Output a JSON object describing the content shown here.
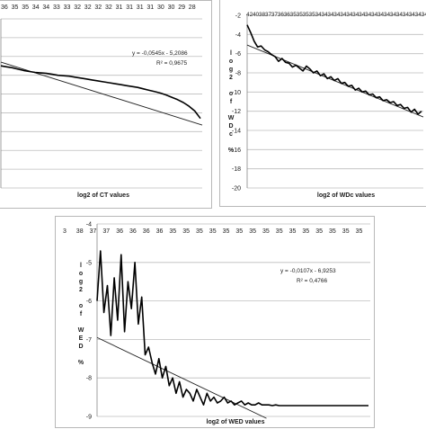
{
  "chart_data": [
    {
      "type": "line",
      "xlabel": "log2 of CT values",
      "ylabel": "",
      "x_tick_labels": [
        "36",
        "35",
        "35",
        "34",
        "34",
        "33",
        "33",
        "32",
        "32",
        "32",
        "32",
        "31",
        "31",
        "31",
        "31",
        "30",
        "30",
        "29",
        "28"
      ],
      "ylim": [
        -18,
        0
      ],
      "grid": true,
      "legend": "none",
      "trendline": {
        "equation": "y = -0,0545x - 5,2086",
        "r2": "R² = 0,9675"
      },
      "series": [
        {
          "values": [
            -5.0,
            -5.1,
            -5.2,
            -5.35,
            -5.5,
            -5.6,
            -5.7,
            -5.75,
            -5.8,
            -5.9,
            -6.0,
            -6.05,
            -6.1,
            -6.2,
            -6.3,
            -6.4,
            -6.5,
            -6.6,
            -6.7,
            -6.8,
            -6.9,
            -7.0,
            -7.1,
            -7.2,
            -7.3,
            -7.45,
            -7.6,
            -7.75,
            -7.9,
            -8.1,
            -8.35,
            -8.6,
            -8.9,
            -9.3,
            -9.8,
            -10.6
          ]
        }
      ],
      "colors": {
        "line": "#000000",
        "trend": "#222222",
        "grid": "#bdbdbd"
      }
    },
    {
      "type": "line",
      "xlabel": "log2 of WDc values",
      "ylabel": "log2 of WDc %",
      "x_tick_labels": [
        "42",
        "40",
        "38",
        "37",
        "37",
        "36",
        "36",
        "35",
        "35",
        "35",
        "35",
        "34",
        "34",
        "34",
        "34",
        "34",
        "34",
        "34",
        "34",
        "34",
        "34",
        "34",
        "34",
        "34",
        "34",
        "34",
        "34",
        "34",
        "34"
      ],
      "ylim": [
        -20,
        -2
      ],
      "y_ticks": [
        -2,
        -4,
        -6,
        -8,
        -10,
        -12,
        -14,
        -16,
        -18,
        -20
      ],
      "grid": true,
      "legend": "none",
      "series": [
        {
          "values": [
            -3.0,
            -3.8,
            -4.7,
            -5.3,
            -5.2,
            -5.6,
            -5.8,
            -6.1,
            -6.3,
            -6.8,
            -6.5,
            -6.9,
            -7.0,
            -7.4,
            -7.2,
            -7.5,
            -7.8,
            -7.3,
            -7.6,
            -8.0,
            -7.8,
            -8.3,
            -8.1,
            -8.6,
            -8.4,
            -8.8,
            -8.6,
            -9.1,
            -9.0,
            -9.4,
            -9.3,
            -9.8,
            -9.6,
            -10.0,
            -9.9,
            -10.3,
            -10.2,
            -10.6,
            -10.5,
            -10.9,
            -10.8,
            -11.1,
            -11.0,
            -11.4,
            -11.3,
            -11.7,
            -11.6,
            -12.1,
            -11.8,
            -12.3,
            -12.0
          ]
        }
      ],
      "colors": {
        "line": "#000000",
        "trend": "#222222",
        "grid": "#bdbdbd"
      }
    },
    {
      "type": "line",
      "xlabel": "log2 of WED values",
      "ylabel": "log2 of WED %",
      "x_tick_labels": [
        "3",
        "38",
        "37",
        "37",
        "36",
        "36",
        "36",
        "36",
        "35",
        "35",
        "35",
        "35",
        "35",
        "35",
        "35",
        "35",
        "35",
        "35",
        "35",
        "35",
        "35",
        "35",
        "35"
      ],
      "ylim": [
        -9,
        -4
      ],
      "y_ticks": [
        -4,
        -5,
        -6,
        -7,
        -8,
        -9
      ],
      "grid": true,
      "legend": "none",
      "trendline": {
        "equation": "y = -0,0107x - 6,9253",
        "r2": "R² = 0,4766"
      },
      "series": [
        {
          "values": [
            -6.0,
            -4.7,
            -6.3,
            -5.6,
            -6.9,
            -5.4,
            -6.5,
            -4.8,
            -6.8,
            -5.5,
            -6.2,
            -5.0,
            -6.6,
            -5.9,
            -7.4,
            -7.2,
            -7.6,
            -7.9,
            -7.5,
            -8.0,
            -7.7,
            -8.2,
            -8.0,
            -8.4,
            -8.1,
            -8.5,
            -8.3,
            -8.4,
            -8.6,
            -8.3,
            -8.5,
            -8.7,
            -8.4,
            -8.6,
            -8.5,
            -8.65,
            -8.6,
            -8.5,
            -8.65,
            -8.6,
            -8.7,
            -8.65,
            -8.6,
            -8.7,
            -8.65,
            -8.7,
            -8.7,
            -8.65,
            -8.7,
            -8.7,
            -8.7,
            -8.72,
            -8.7,
            -8.72,
            -8.72,
            -8.72,
            -8.72,
            -8.72,
            -8.72,
            -8.72,
            -8.72,
            -8.72,
            -8.72,
            -8.72,
            -8.72,
            -8.72,
            -8.72,
            -8.72,
            -8.72,
            -8.72,
            -8.72,
            -8.72,
            -8.72,
            -8.72,
            -8.72,
            -8.72,
            -8.72,
            -8.72,
            -8.72,
            -8.72
          ]
        }
      ],
      "colors": {
        "line": "#000000",
        "trend": "#222222",
        "grid": "#bdbdbd"
      }
    }
  ]
}
